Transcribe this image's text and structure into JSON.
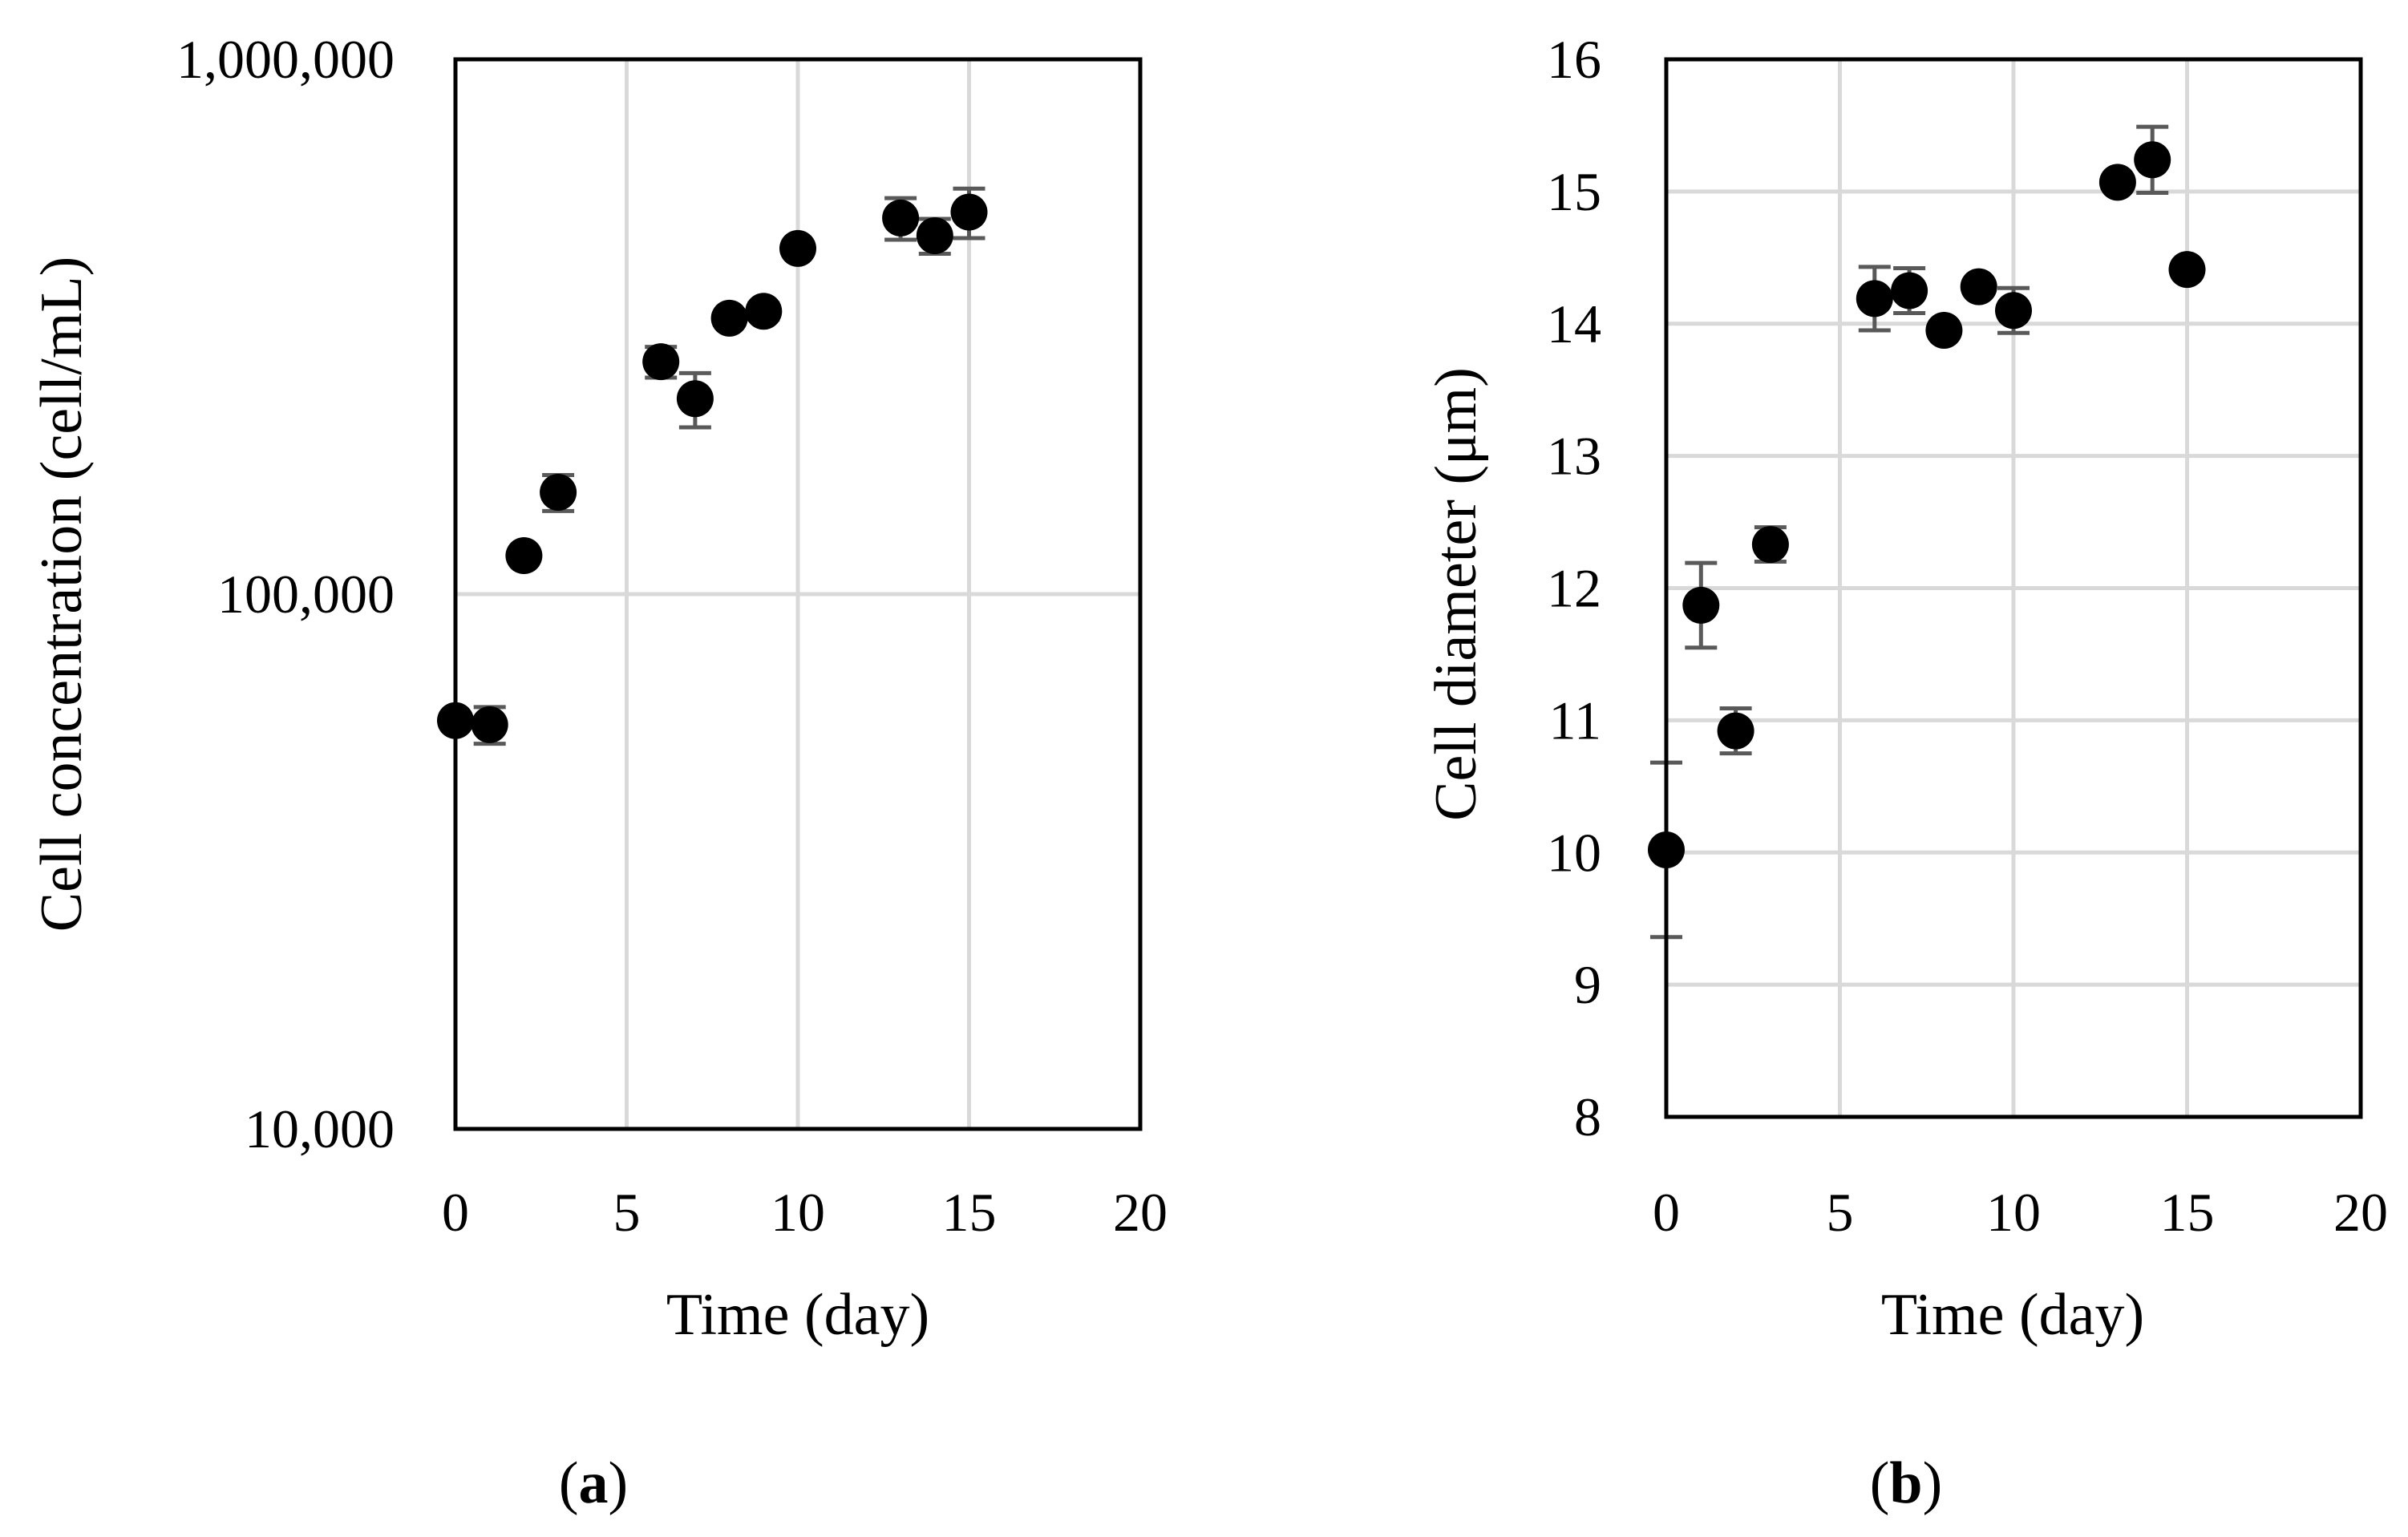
{
  "chart_data": [
    {
      "id": "a",
      "type": "scatter",
      "panel_label": "a",
      "xlabel": "Time (day)",
      "ylabel": "Cell concentration (cell/mL)",
      "xlim": [
        0,
        20
      ],
      "xticks": [
        0,
        5,
        10,
        15,
        20
      ],
      "x_tick_labels": [
        "0",
        "5",
        "10",
        "15",
        "20"
      ],
      "yscale": "log",
      "ylim": [
        10000,
        1000000
      ],
      "yticks": [
        10000,
        100000,
        1000000
      ],
      "y_tick_labels": [
        "10,000",
        "100,000",
        "1,000,000"
      ],
      "grid": true,
      "marker_color": "#000000",
      "errorbar_color": "#595959",
      "points": [
        {
          "x": 0.0,
          "y": 58000,
          "err": 0
        },
        {
          "x": 1.0,
          "y": 57000,
          "err": 4500
        },
        {
          "x": 2.0,
          "y": 118000,
          "err": 0
        },
        {
          "x": 3.0,
          "y": 155000,
          "err": 12000
        },
        {
          "x": 6.0,
          "y": 272000,
          "err": 18000
        },
        {
          "x": 7.0,
          "y": 232000,
          "err": 27000
        },
        {
          "x": 8.0,
          "y": 328000,
          "err": 0
        },
        {
          "x": 9.0,
          "y": 338000,
          "err": 12000
        },
        {
          "x": 10.0,
          "y": 443000,
          "err": 0
        },
        {
          "x": 13.0,
          "y": 505000,
          "err": 45000
        },
        {
          "x": 14.0,
          "y": 468000,
          "err": 35000
        },
        {
          "x": 15.0,
          "y": 518000,
          "err": 55000
        }
      ]
    },
    {
      "id": "b",
      "type": "scatter",
      "panel_label": "b",
      "xlabel": "Time (day)",
      "ylabel": "Cell diameter (μm)",
      "xlim": [
        0,
        20
      ],
      "xticks": [
        0,
        5,
        10,
        15,
        20
      ],
      "x_tick_labels": [
        "0",
        "5",
        "10",
        "15",
        "20"
      ],
      "yscale": "linear",
      "ylim": [
        8,
        16
      ],
      "yticks": [
        8,
        9,
        10,
        11,
        12,
        13,
        14,
        15,
        16
      ],
      "y_tick_labels": [
        "8",
        "9",
        "10",
        "11",
        "12",
        "13",
        "14",
        "15",
        "16"
      ],
      "grid": true,
      "marker_color": "#000000",
      "errorbar_color": "#595959",
      "points": [
        {
          "x": 0.0,
          "y": 10.02,
          "err": 0.66
        },
        {
          "x": 1.0,
          "y": 11.87,
          "err": 0.32
        },
        {
          "x": 2.0,
          "y": 10.92,
          "err": 0.17
        },
        {
          "x": 3.0,
          "y": 12.33,
          "err": 0.13
        },
        {
          "x": 6.0,
          "y": 14.19,
          "err": 0.24
        },
        {
          "x": 7.0,
          "y": 14.25,
          "err": 0.17
        },
        {
          "x": 8.0,
          "y": 13.95,
          "err": 0.0
        },
        {
          "x": 9.0,
          "y": 14.28,
          "err": 0.0
        },
        {
          "x": 10.0,
          "y": 14.1,
          "err": 0.17
        },
        {
          "x": 13.0,
          "y": 15.07,
          "err": 0.0
        },
        {
          "x": 14.0,
          "y": 15.24,
          "err": 0.25
        },
        {
          "x": 15.0,
          "y": 14.41,
          "err": 0.0
        }
      ]
    }
  ]
}
